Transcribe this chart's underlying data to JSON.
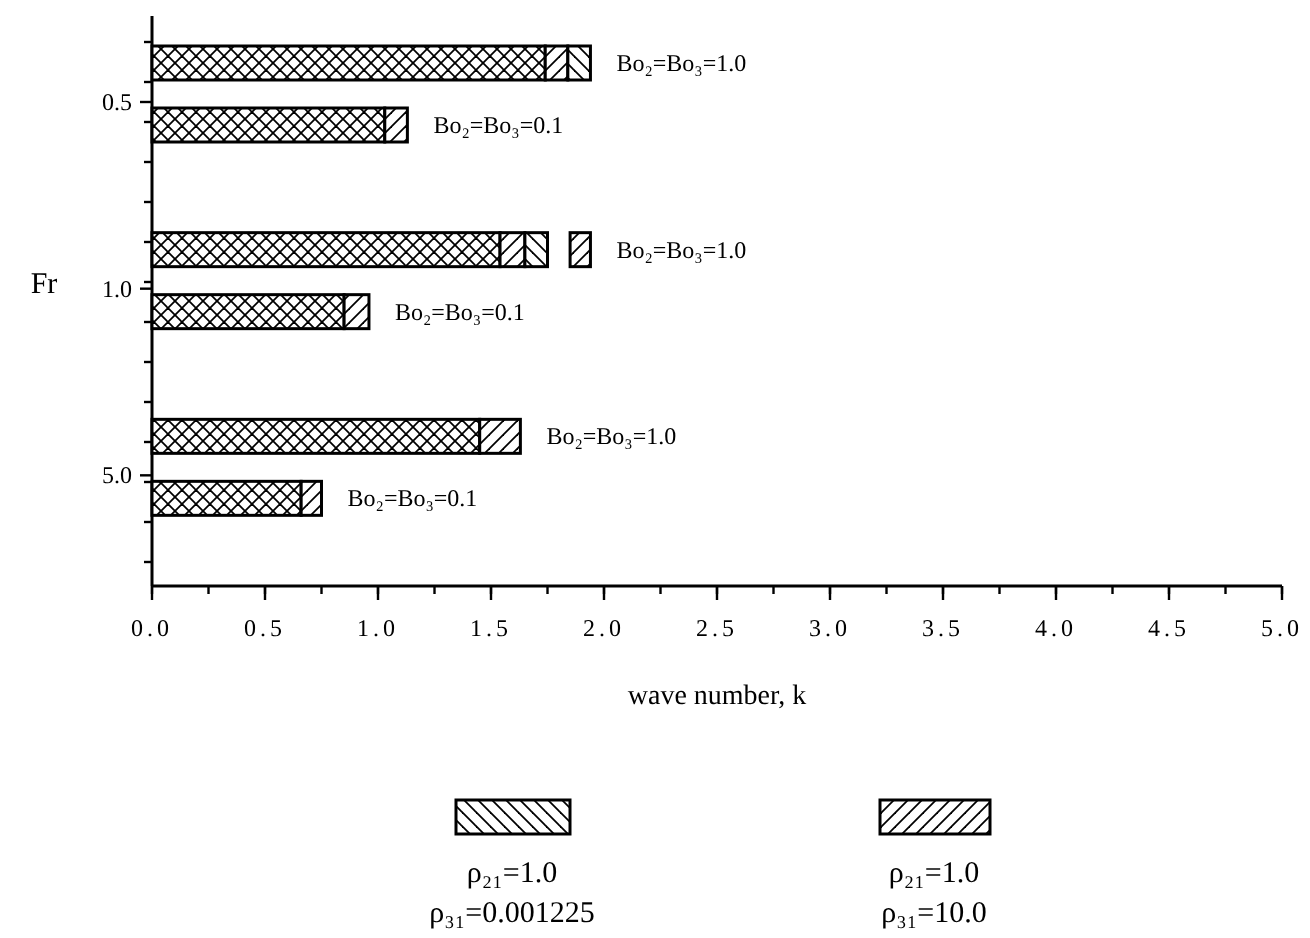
{
  "chart_data": {
    "type": "bar",
    "orientation": "horizontal",
    "xlabel": "wave number,  k",
    "ylabel": "Fr",
    "categories": [
      "Bo₂=Bo₃=1.0",
      "Bo₂=Bo₃=0.1",
      "Bo₂=Bo₃=1.0",
      "Bo₂=Bo₃=0.1",
      "Bo₂=Bo₃=1.0",
      "Bo₂=Bo₃=0.1"
    ],
    "annotations": [
      "0.5",
      "1.0",
      "5.0"
    ],
    "xlim": [
      0,
      5
    ],
    "xticks": [
      {
        "value": 0,
        "label": "0.0"
      },
      {
        "value": 0.5,
        "label": "0.5"
      },
      {
        "value": 1,
        "label": "1.0"
      },
      {
        "value": 1.5,
        "label": "1.5"
      },
      {
        "value": 2,
        "label": "2.0"
      },
      {
        "value": 2.5,
        "label": "2.5"
      },
      {
        "value": 3,
        "label": "3.0"
      },
      {
        "value": 3.5,
        "label": "3.5"
      },
      {
        "value": 4,
        "label": "4.0"
      },
      {
        "value": 4.5,
        "label": "4.5"
      },
      {
        "value": 5,
        "label": "5.0"
      }
    ],
    "legend": "bottom",
    "series": [
      {
        "color": "#000000",
        "base": [
          0,
          0,
          0,
          0,
          0,
          0
        ],
        "values": [
          1.74,
          1.03,
          1.54,
          0.85,
          1.45,
          0.66
        ]
      },
      {
        "name": "ρ₂₁=1.0\nρ₃₁=10.0",
        "color": "#000000",
        "base": [
          1.74,
          1.03,
          1.54,
          0.85,
          1.45,
          0.66
        ],
        "values": [
          0.1,
          0.1,
          0.11,
          0.11,
          0.18,
          0.09
        ]
      },
      {
        "name": "ρ₂₁=1.0\nρ₃₁=0.001225",
        "color": "#000000",
        "base": [
          1.84,
          null,
          1.65,
          null,
          null,
          null
        ],
        "values": [
          0.1,
          null,
          0.1,
          null,
          null,
          null
        ]
      },
      {
        "color": "#000000",
        "base": [
          null,
          null,
          1.85,
          null,
          null,
          null
        ],
        "values": [
          null,
          null,
          0.09,
          null,
          null,
          null
        ]
      }
    ]
  }
}
